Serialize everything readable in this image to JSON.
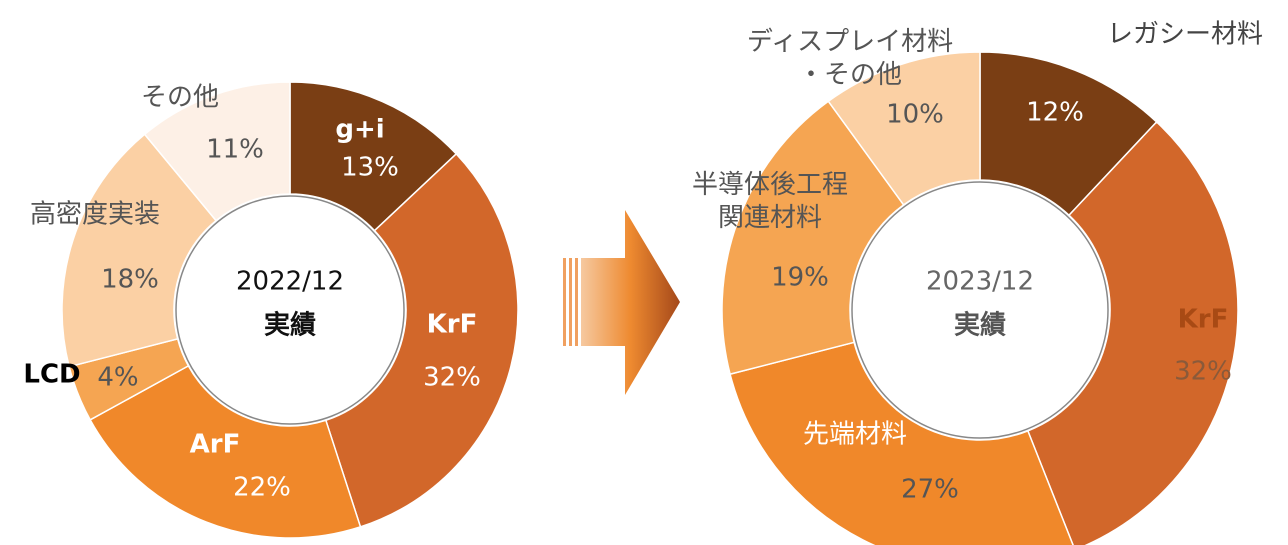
{
  "chart_data": [
    {
      "type": "pie",
      "title": "2022/12",
      "subtitle": "実績",
      "categories": [
        "g+i",
        "KrF",
        "ArF",
        "LCD",
        "高密度実装",
        "その他"
      ],
      "values": [
        13,
        32,
        22,
        4,
        18,
        11
      ],
      "value_labels": [
        "13%",
        "32%",
        "22%",
        "4%",
        "18%",
        "11%"
      ],
      "colors": [
        "#7a3e14",
        "#d2672a",
        "#f0882a",
        "#f5a552",
        "#fbd0a4",
        "#fdf0e6"
      ]
    },
    {
      "type": "pie",
      "title": "2023/12",
      "subtitle": "実績",
      "categories": [
        "レガシー材料",
        "KrF",
        "先端材料",
        "半導体後工程\n関連材料",
        "ディスプレイ材料\n・その他"
      ],
      "values": [
        12,
        32,
        27,
        19,
        10
      ],
      "value_labels": [
        "12%",
        "32%",
        "27%",
        "19%",
        "10%"
      ],
      "colors": [
        "#7a3e14",
        "#d2672a",
        "#f0882a",
        "#f5a552",
        "#fbd0a4"
      ]
    }
  ]
}
